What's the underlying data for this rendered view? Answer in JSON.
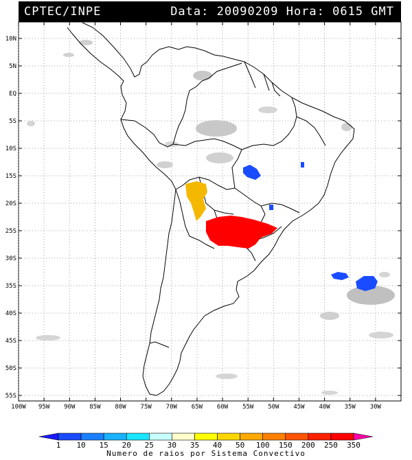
{
  "header": {
    "title": "CPTEC/INPE",
    "datetime": "Data: 20090209 Hora: 0615 GMT"
  },
  "map": {
    "lon_range": [
      -100,
      -25
    ],
    "lat_range": [
      -56,
      13
    ],
    "lat_labels": [
      "10N",
      "5N",
      "EQ",
      "5S",
      "10S",
      "15S",
      "20S",
      "25S",
      "30S",
      "35S",
      "40S",
      "45S",
      "50S",
      "55S"
    ],
    "lat_values": [
      10,
      5,
      0,
      -5,
      -10,
      -15,
      -20,
      -25,
      -30,
      -35,
      -40,
      -45,
      -50,
      -55
    ],
    "lon_labels": [
      "100W",
      "95W",
      "90W",
      "85W",
      "80W",
      "75W",
      "70W",
      "65W",
      "60W",
      "55W",
      "50W",
      "45W",
      "40W",
      "35W",
      "30W"
    ],
    "lon_values": [
      -100,
      -95,
      -90,
      -85,
      -80,
      -75,
      -70,
      -65,
      -60,
      -55,
      -50,
      -45,
      -40,
      -35,
      -30
    ],
    "gridlines": "dotted",
    "systems": [
      {
        "name": "south-brazil-paraguay-system",
        "color": "#ff0000",
        "lon": -57,
        "lat": -26.5,
        "class": "250-350"
      },
      {
        "name": "bolivia-system",
        "color": "#f5b800",
        "lon": -64.5,
        "lat": -19.5,
        "class": "50-100"
      },
      {
        "name": "mato-grosso-system",
        "color": "#1a4cff",
        "lon": -55.5,
        "lat": -15,
        "class": "1-10"
      },
      {
        "name": "atlantic-system-east",
        "color": "#1a4cff",
        "lon": -32,
        "lat": -35,
        "class": "1-10"
      },
      {
        "name": "atlantic-system-west",
        "color": "#1a4cff",
        "lon": -37,
        "lat": -33.5,
        "class": "1-10"
      },
      {
        "name": "goias-system",
        "color": "#1a4cff",
        "lon": -44,
        "lat": -14,
        "class": "1-10"
      },
      {
        "name": "sao-paulo-system",
        "color": "#1a4cff",
        "lon": -51,
        "lat": -20.5,
        "class": "1-10"
      }
    ]
  },
  "colorbar": {
    "title": "Numero de raios por Sistema Convectivo",
    "labels": [
      "1",
      "10",
      "15",
      "20",
      "25",
      "30",
      "35",
      "40",
      "50",
      "100",
      "150",
      "200",
      "250",
      "350"
    ],
    "colors": [
      "#1a1aff",
      "#1a4cff",
      "#1a80ff",
      "#1ab2ff",
      "#1ae5ff",
      "#c8ffff",
      "#ffffcc",
      "#ffff00",
      "#ffd700",
      "#ffaa00",
      "#ff8000",
      "#ff5500",
      "#ff2000",
      "#ff0000",
      "#ff00aa"
    ]
  }
}
